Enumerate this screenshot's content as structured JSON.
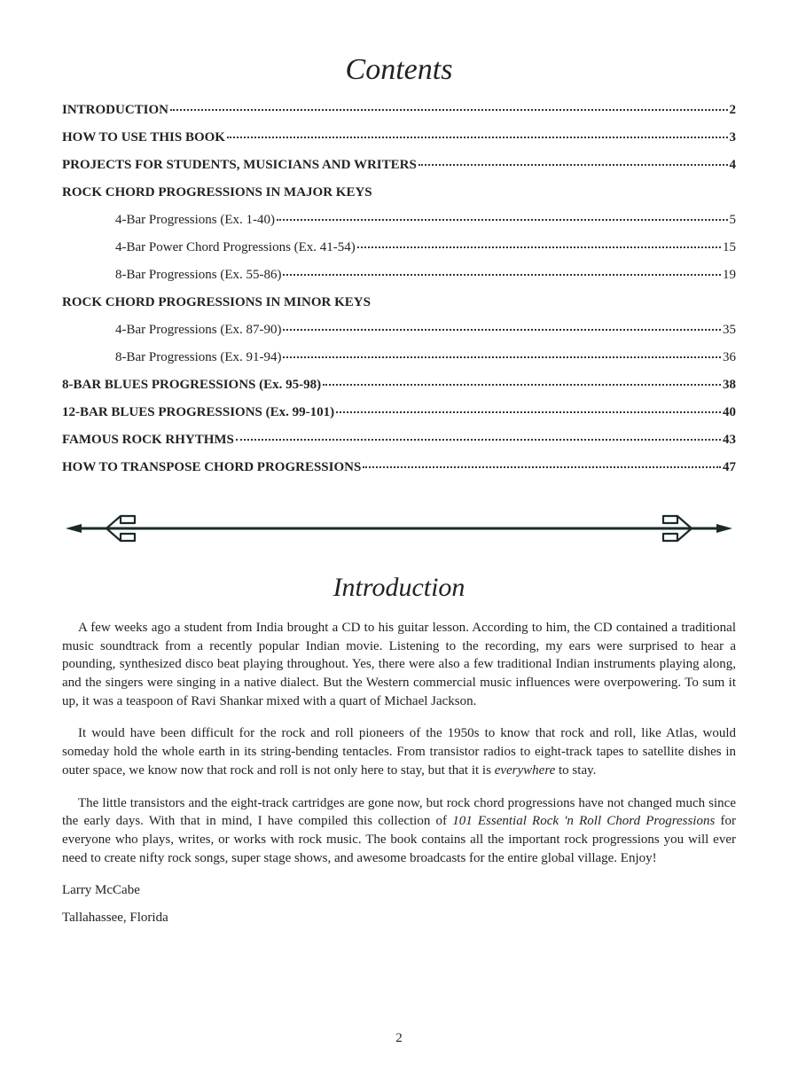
{
  "contents": {
    "title": "Contents",
    "entries": [
      {
        "kind": "line",
        "label": "INTRODUCTION",
        "page": "2"
      },
      {
        "kind": "line",
        "label": "HOW TO USE THIS BOOK",
        "page": "3"
      },
      {
        "kind": "line",
        "label": "PROJECTS FOR STUDENTS,  MUSICIANS AND WRITERS",
        "page": "4"
      },
      {
        "kind": "heading",
        "label": "ROCK CHORD PROGRESSIONS  IN MAJOR KEYS"
      },
      {
        "kind": "sub",
        "label": "4-Bar Progressions (Ex. 1-40)",
        "page": "5"
      },
      {
        "kind": "sub",
        "label": "4-Bar Power Chord Progressions (Ex. 41-54)",
        "page": "15"
      },
      {
        "kind": "sub",
        "label": "8-Bar Progressions (Ex. 55-86)",
        "page": "19"
      },
      {
        "kind": "heading",
        "label": "ROCK CHORD PROGRESSIONS  IN MINOR KEYS"
      },
      {
        "kind": "sub",
        "label": "4-Bar Progressions (Ex. 87-90)",
        "page": "35"
      },
      {
        "kind": "sub",
        "label": "8-Bar Progressions (Ex. 91-94)",
        "page": "36"
      },
      {
        "kind": "line",
        "label": "8-BAR BLUES PROGRESSIONS  (Ex. 95-98)",
        "page": "38"
      },
      {
        "kind": "line",
        "label": "12-BAR BLUES PROGRESSIONS (Ex. 99-101)",
        "page": "40"
      },
      {
        "kind": "line",
        "label": "FAMOUS ROCK RHYTHMS",
        "page": "43"
      },
      {
        "kind": "line",
        "label": "HOW TO TRANSPOSE CHORD PROGRESSIONS",
        "page": "47"
      }
    ]
  },
  "intro": {
    "title": "Introduction",
    "paragraphs": [
      "A few weeks ago a student from India brought a CD to his guitar lesson.  According to him, the CD contained a traditional music soundtrack from a recently popular Indian movie.  Listening to the recording, my ears were surprised to hear a pounding, synthesized disco beat playing throughout.  Yes, there were also a few traditional Indian instruments playing along, and the singers were singing in a native dialect.  But the Western commercial music influences were overpowering.  To sum it up, it was a teaspoon of Ravi Shankar mixed with a quart of Michael Jackson.",
      "It would have been difficult for the rock and roll pioneers of the 1950s to know that rock and roll, like Atlas, would someday hold the whole earth in its string-bending tentacles.  From transistor radios to eight-track tapes to satellite dishes in outer space, we know now that rock and roll is not only here to stay, but that it is everywhere to stay.",
      "The little transistors and the eight-track cartridges are gone now, but rock chord progressions have not changed much since the early days.  With that in mind, I have compiled this collection of 101 Essential Rock 'n Roll Chord Progressions for everyone who plays, writes, or works with rock music.  The book contains all the important rock progressions you will ever need to create nifty rock songs, super stage shows, and awesome broadcasts for the entire global village.  Enjoy!"
    ],
    "signature": "Larry McCabe",
    "location": "Tallahassee, Florida"
  },
  "page_number": "2"
}
